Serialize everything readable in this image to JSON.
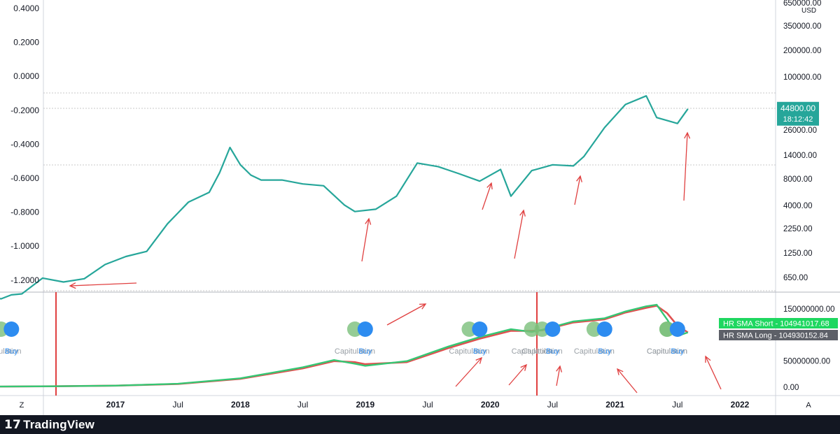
{
  "chart_data": [
    {
      "type": "line",
      "panel": "price",
      "left_axis_ticks": [
        "0.4000",
        "0.2000",
        "0.0000",
        "-0.2000",
        "-0.4000",
        "-0.6000",
        "-0.8000",
        "-1.0000",
        "-1.2000"
      ],
      "right_axis_ticks": [
        "650000.00",
        "350000.00",
        "200000.00",
        "100000.00",
        "26000.00",
        "14000.00",
        "8000.00",
        "4000.00",
        "2250.00",
        "1250.00",
        "650.00"
      ],
      "right_axis_scale": "log",
      "currency": "USD",
      "price_label": {
        "value": "44800.00",
        "timer": "18:12:42",
        "color": "#26a69a"
      },
      "series": [
        {
          "color": "#26a69a",
          "x": [
            "2016-01",
            "2016-02",
            "2016-03",
            "2016-04",
            "2016-06",
            "2016-08",
            "2016-10",
            "2016-12",
            "2017-02",
            "2017-04",
            "2017-06",
            "2017-08",
            "2017-10",
            "2017-11",
            "2017-12",
            "2018-01",
            "2018-02",
            "2018-03",
            "2018-05",
            "2018-07",
            "2018-09",
            "2018-11",
            "2018-12",
            "2019-02",
            "2019-04",
            "2019-06",
            "2019-08",
            "2019-10",
            "2019-12",
            "2020-02",
            "2020-03",
            "2020-05",
            "2020-07",
            "2020-09",
            "2020-10",
            "2020-12",
            "2021-02",
            "2021-04",
            "2021-05",
            "2021-07",
            "2021-08"
          ],
          "y": [
            400,
            380,
            420,
            430,
            640,
            580,
            630,
            900,
            1100,
            1250,
            2500,
            4300,
            5500,
            9000,
            17000,
            11000,
            8500,
            7500,
            7500,
            6800,
            6500,
            4000,
            3400,
            3600,
            5000,
            11500,
            10500,
            8800,
            7300,
            9800,
            5000,
            9500,
            11000,
            10700,
            13500,
            28000,
            50000,
            62000,
            36000,
            31000,
            44800
          ]
        }
      ],
      "annotations": [
        {
          "type": "arrow",
          "color": "#e04040"
        }
      ]
    },
    {
      "type": "line",
      "panel": "hash-ribbons",
      "right_axis_ticks": [
        "150000000.00",
        "100000000.00",
        "50000000.00",
        "0.00"
      ],
      "legend": [
        {
          "name": "HR SMA Short",
          "value": "104941017.68",
          "color": "#1ed760"
        },
        {
          "name": "HR SMA Long",
          "value": "104930152.84",
          "color": "#5d6068"
        }
      ],
      "x_ticks": [
        "2017",
        "Jul",
        "2018",
        "Jul",
        "2019",
        "Jul",
        "2020",
        "Jul",
        "2021",
        "Jul",
        "2022"
      ],
      "series": [
        {
          "name": "HR SMA Short",
          "color": "#35c774",
          "x": [
            "2016-01",
            "2016-07",
            "2017-01",
            "2017-07",
            "2018-01",
            "2018-07",
            "2018-10",
            "2018-12",
            "2019-01",
            "2019-05",
            "2019-09",
            "2019-12",
            "2020-03",
            "2020-05",
            "2020-06",
            "2020-09",
            "2020-12",
            "2021-02",
            "2021-04",
            "2021-05",
            "2021-06",
            "2021-07",
            "2021-08"
          ],
          "y": [
            1200000,
            1800000,
            3000000,
            6500000,
            17000000,
            38000000,
            52000000,
            45000000,
            41000000,
            50000000,
            78000000,
            96000000,
            111000000,
            106000000,
            110000000,
            126000000,
            132000000,
            145000000,
            155000000,
            158000000,
            130000000,
            98000000,
            104941017.68
          ]
        },
        {
          "name": "HR SMA Long",
          "color": "#e05050",
          "x": [
            "2016-01",
            "2016-07",
            "2017-01",
            "2017-07",
            "2018-01",
            "2018-07",
            "2018-10",
            "2018-12",
            "2019-01",
            "2019-05",
            "2019-09",
            "2019-12",
            "2020-03",
            "2020-05",
            "2020-06",
            "2020-09",
            "2020-12",
            "2021-02",
            "2021-04",
            "2021-05",
            "2021-06",
            "2021-07",
            "2021-08"
          ],
          "y": [
            1100000,
            1700000,
            2900000,
            6200000,
            16000000,
            36000000,
            50000000,
            48000000,
            44000000,
            48000000,
            75000000,
            93000000,
            108000000,
            108000000,
            109000000,
            124000000,
            130000000,
            143000000,
            152000000,
            156000000,
            142000000,
            118000000,
            104930152.84
          ]
        }
      ],
      "signal_markers": [
        {
          "x": "2016-02",
          "label": "Capitulation"
        },
        {
          "x": "2016-03",
          "label": "Buy"
        },
        {
          "x": "2018-12",
          "label": "Capitulation"
        },
        {
          "x": "2019-01",
          "label": "Buy"
        },
        {
          "x": "2019-11",
          "label": "Capitulation"
        },
        {
          "x": "2019-12",
          "label": "Buy"
        },
        {
          "x": "2020-05",
          "label": "Capitulation"
        },
        {
          "x": "2020-06",
          "label": "Capitulation"
        },
        {
          "x": "2020-07",
          "label": "Buy"
        },
        {
          "x": "2020-11",
          "label": "Capitulation"
        },
        {
          "x": "2020-12",
          "label": "Buy"
        },
        {
          "x": "2021-06",
          "label": "Capitulation"
        },
        {
          "x": "2021-06",
          "label": "Capitulation"
        },
        {
          "x": "2021-07",
          "label": "Buy"
        }
      ],
      "marker_colors": {
        "capitulation": "#7bbf7b",
        "buy": "#2d8cf0",
        "bright": "#1ee86a",
        "label": "#9aa0a6",
        "buy_label": "#2d8cf0"
      }
    }
  ],
  "axis_buttons": {
    "left": "Z",
    "right": "A"
  },
  "brand": {
    "mark": "17",
    "name": "TradingView"
  }
}
